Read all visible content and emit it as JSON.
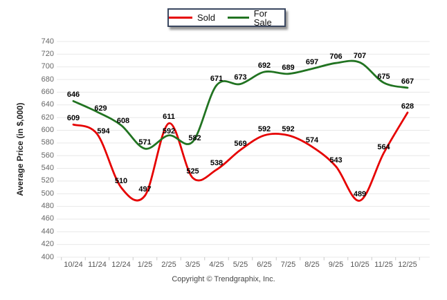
{
  "legend": {
    "items": [
      {
        "label": "Sold",
        "color": "#e60000"
      },
      {
        "label": "For Sale",
        "color": "#217321"
      }
    ]
  },
  "chart_data": {
    "type": "line",
    "categories": [
      "10/24",
      "11/24",
      "12/24",
      "1/25",
      "2/25",
      "3/25",
      "4/25",
      "5/25",
      "6/25",
      "7/25",
      "8/25",
      "9/25",
      "10/25",
      "11/25",
      "12/25"
    ],
    "series": [
      {
        "name": "Sold",
        "color": "#e60000",
        "values": [
          609,
          594,
          510,
          497,
          611,
          525,
          538,
          569,
          592,
          592,
          574,
          543,
          489,
          564,
          628
        ]
      },
      {
        "name": "For Sale",
        "color": "#217321",
        "values": [
          646,
          629,
          608,
          571,
          592,
          582,
          671,
          673,
          692,
          689,
          697,
          706,
          707,
          675,
          667
        ]
      }
    ],
    "title": "",
    "xlabel": "",
    "ylabel": "Average Price (in $,000)",
    "ylim": [
      400,
      740
    ],
    "ytick_step": 20,
    "grid": true,
    "legend_position": "top",
    "data_labels": true
  },
  "footer": {
    "copyright": "Copyright © Trendgraphix, Inc."
  }
}
